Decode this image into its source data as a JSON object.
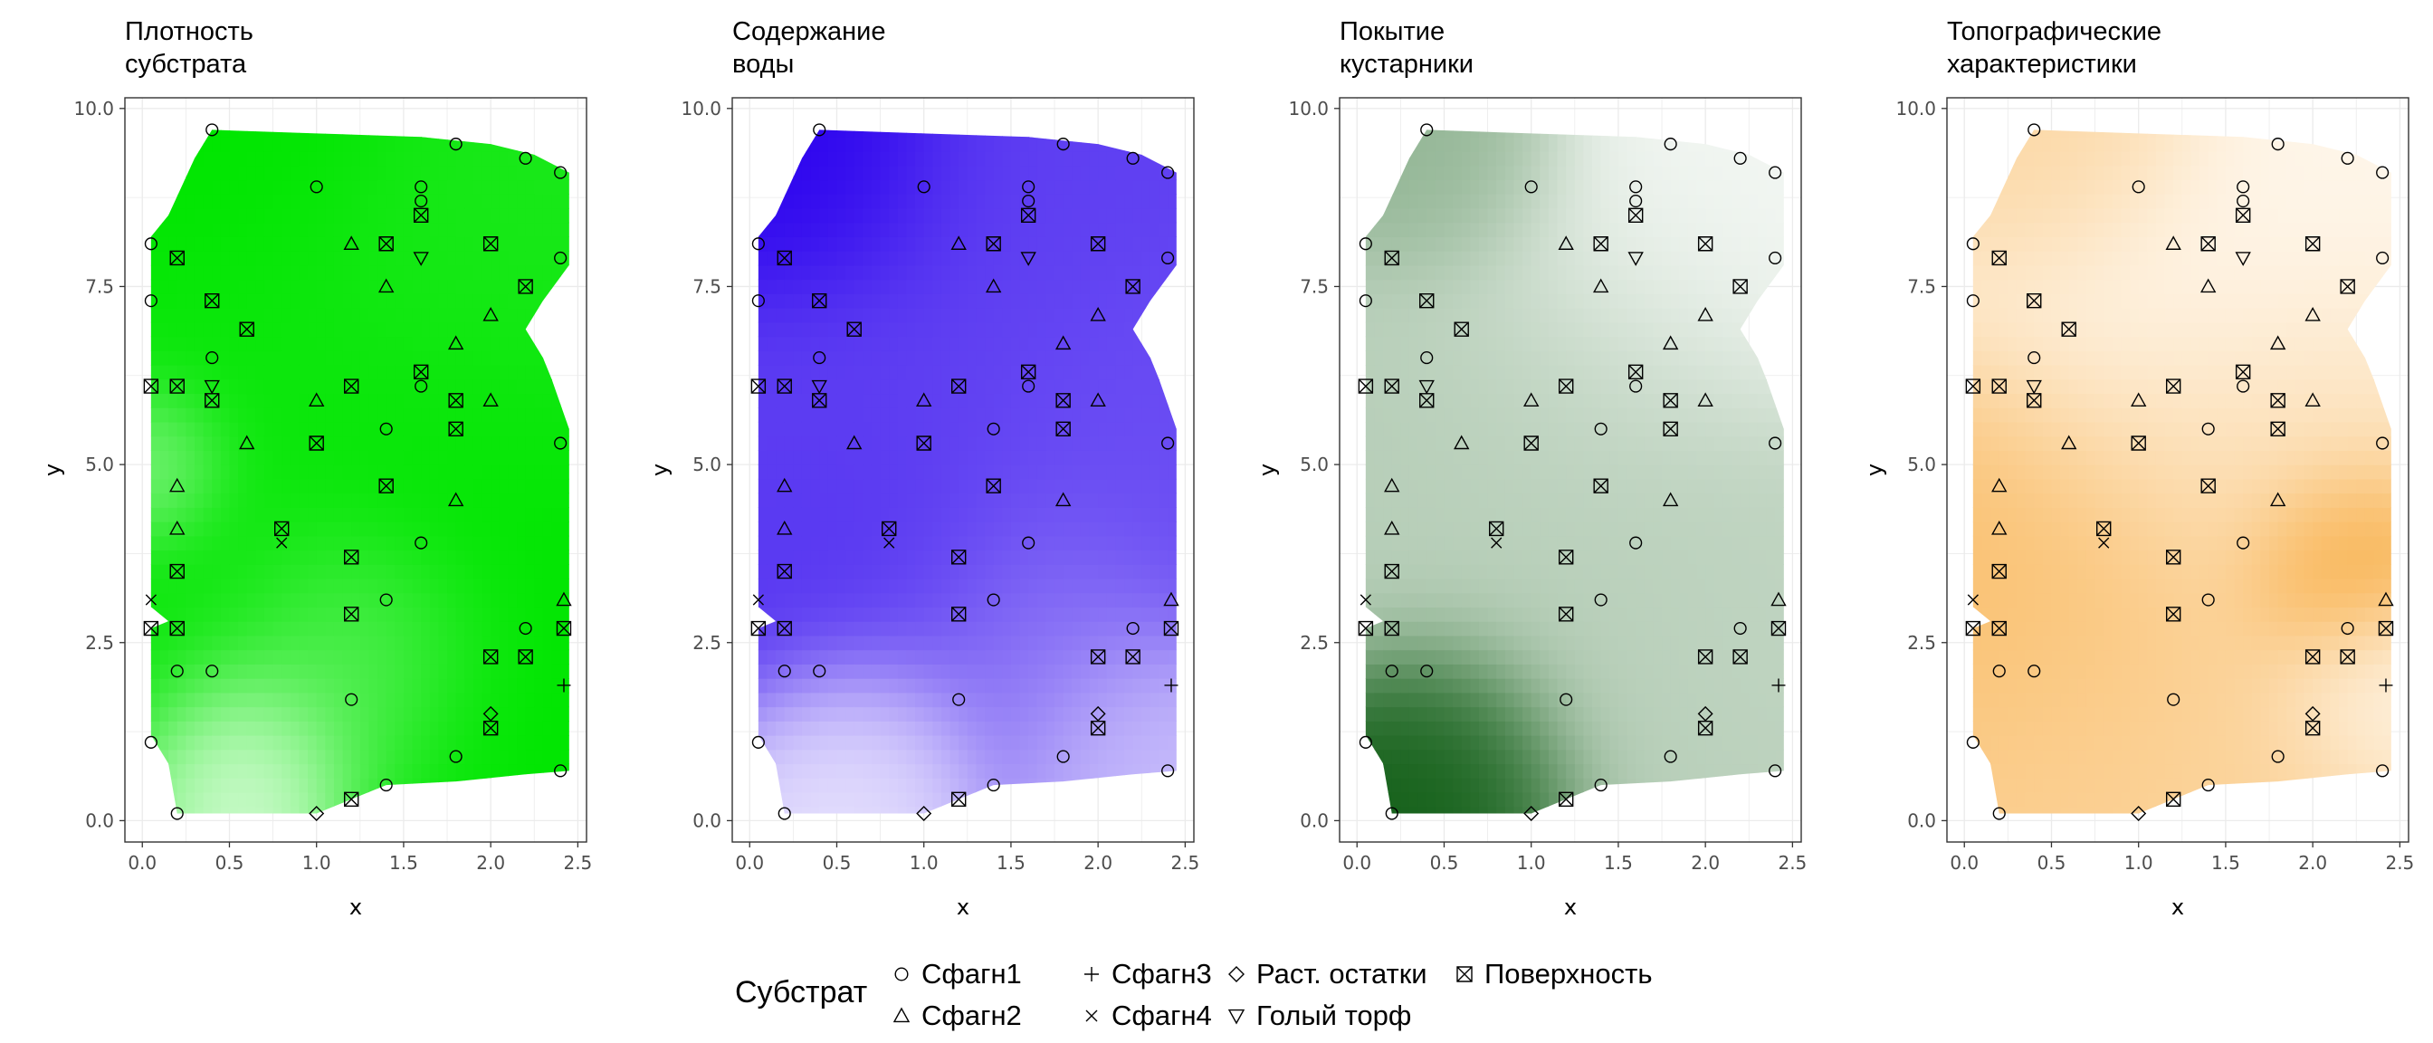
{
  "panels": [
    {
      "title": "Плотность\nсубстрата",
      "color": "#00e600"
    },
    {
      "title": "Содержание\nводы",
      "color": "#2a00ee"
    },
    {
      "title": "Покытие\nкустарники",
      "color": "#0b5a10"
    },
    {
      "title": "Топографические\nхарактеристики",
      "color": "#f7a22a"
    }
  ],
  "legend": {
    "title": "Субстрат",
    "items": [
      {
        "label": "Сфагн1",
        "shape": "circle"
      },
      {
        "label": "Сфагн2",
        "shape": "triangle"
      },
      {
        "label": "Сфагн3",
        "shape": "plus"
      },
      {
        "label": "Сфагн4",
        "shape": "cross"
      },
      {
        "label": "Раст. остатки",
        "shape": "diamond"
      },
      {
        "label": "Голый торф",
        "shape": "triangle-down"
      },
      {
        "label": "Поверхность",
        "shape": "square-x"
      }
    ]
  },
  "chart_data": {
    "type": "heatmap",
    "xlabel": "x",
    "ylabel": "y",
    "xlim": [
      -0.1,
      2.55
    ],
    "ylim": [
      -0.3,
      10.15
    ],
    "x_ticks": [
      "0.0",
      "0.5",
      "1.0",
      "1.5",
      "2.0",
      "2.5"
    ],
    "y_ticks": [
      "0.0",
      "2.5",
      "5.0",
      "7.5",
      "10.0"
    ],
    "grid": true,
    "legend_position": "bottom",
    "shapes": {
      "Сфагн1": "circle",
      "Сфагн2": "triangle",
      "Сфагн3": "plus",
      "Сфагн4": "cross",
      "Раст. остатки": "diamond",
      "Голый торф": "triangle-down",
      "Поверхность": "square-x"
    },
    "points": [
      {
        "x": 0.4,
        "y": 9.7,
        "s": "Сфагн1"
      },
      {
        "x": 1.0,
        "y": 8.9,
        "s": "Сфагн1"
      },
      {
        "x": 1.6,
        "y": 8.9,
        "s": "Сфагн1"
      },
      {
        "x": 1.6,
        "y": 8.7,
        "s": "Сфагн1"
      },
      {
        "x": 1.8,
        "y": 9.5,
        "s": "Сфагн1"
      },
      {
        "x": 2.2,
        "y": 9.3,
        "s": "Сфагн1"
      },
      {
        "x": 2.4,
        "y": 9.1,
        "s": "Сфагн1"
      },
      {
        "x": 0.05,
        "y": 8.1,
        "s": "Сфагн1"
      },
      {
        "x": 0.05,
        "y": 7.3,
        "s": "Сфагн1"
      },
      {
        "x": 2.4,
        "y": 7.9,
        "s": "Сфагн1"
      },
      {
        "x": 0.4,
        "y": 6.5,
        "s": "Сфагн1"
      },
      {
        "x": 1.6,
        "y": 6.1,
        "s": "Сфагн1"
      },
      {
        "x": 1.4,
        "y": 5.5,
        "s": "Сфагн1"
      },
      {
        "x": 2.4,
        "y": 5.3,
        "s": "Сфагн1"
      },
      {
        "x": 1.6,
        "y": 3.9,
        "s": "Сфагн1"
      },
      {
        "x": 1.4,
        "y": 3.1,
        "s": "Сфагн1"
      },
      {
        "x": 2.2,
        "y": 2.7,
        "s": "Сфагн1"
      },
      {
        "x": 0.2,
        "y": 2.1,
        "s": "Сфагн1"
      },
      {
        "x": 0.4,
        "y": 2.1,
        "s": "Сфагн1"
      },
      {
        "x": 1.2,
        "y": 1.7,
        "s": "Сфагн1"
      },
      {
        "x": 0.05,
        "y": 1.1,
        "s": "Сфагн1"
      },
      {
        "x": 1.8,
        "y": 0.9,
        "s": "Сфагн1"
      },
      {
        "x": 2.4,
        "y": 0.7,
        "s": "Сфагн1"
      },
      {
        "x": 1.4,
        "y": 0.5,
        "s": "Сфагн1"
      },
      {
        "x": 0.2,
        "y": 0.1,
        "s": "Сфагн1"
      },
      {
        "x": 1.2,
        "y": 8.1,
        "s": "Сфагн2"
      },
      {
        "x": 1.4,
        "y": 7.5,
        "s": "Сфагн2"
      },
      {
        "x": 2.0,
        "y": 7.1,
        "s": "Сфагн2"
      },
      {
        "x": 1.8,
        "y": 6.7,
        "s": "Сфагн2"
      },
      {
        "x": 1.0,
        "y": 5.9,
        "s": "Сфагн2"
      },
      {
        "x": 2.0,
        "y": 5.9,
        "s": "Сфагн2"
      },
      {
        "x": 0.6,
        "y": 5.3,
        "s": "Сфагн2"
      },
      {
        "x": 0.2,
        "y": 4.7,
        "s": "Сфагн2"
      },
      {
        "x": 1.8,
        "y": 4.5,
        "s": "Сфагн2"
      },
      {
        "x": 0.2,
        "y": 4.1,
        "s": "Сфагн2"
      },
      {
        "x": 2.42,
        "y": 3.1,
        "s": "Сфагн2"
      },
      {
        "x": 2.42,
        "y": 1.9,
        "s": "Сфагн3"
      },
      {
        "x": 0.05,
        "y": 3.1,
        "s": "Сфагн4"
      },
      {
        "x": 0.8,
        "y": 3.9,
        "s": "Сфагн4"
      },
      {
        "x": 1.0,
        "y": 0.1,
        "s": "Раст. остатки"
      },
      {
        "x": 2.0,
        "y": 1.5,
        "s": "Раст. остатки"
      },
      {
        "x": 1.6,
        "y": 7.9,
        "s": "Голый торф"
      },
      {
        "x": 0.4,
        "y": 6.1,
        "s": "Голый торф"
      },
      {
        "x": 0.2,
        "y": 7.9,
        "s": "Поверхность"
      },
      {
        "x": 1.4,
        "y": 8.1,
        "s": "Поверхность"
      },
      {
        "x": 2.0,
        "y": 8.1,
        "s": "Поверхность"
      },
      {
        "x": 1.6,
        "y": 8.5,
        "s": "Поверхность"
      },
      {
        "x": 0.4,
        "y": 7.3,
        "s": "Поверхность"
      },
      {
        "x": 2.2,
        "y": 7.5,
        "s": "Поверхность"
      },
      {
        "x": 0.6,
        "y": 6.9,
        "s": "Поверхность"
      },
      {
        "x": 1.6,
        "y": 6.3,
        "s": "Поверхность"
      },
      {
        "x": 0.05,
        "y": 6.1,
        "s": "Поверхность"
      },
      {
        "x": 0.2,
        "y": 6.1,
        "s": "Поверхность"
      },
      {
        "x": 1.2,
        "y": 6.1,
        "s": "Поверхность"
      },
      {
        "x": 0.4,
        "y": 5.9,
        "s": "Поверхность"
      },
      {
        "x": 1.8,
        "y": 5.9,
        "s": "Поверхность"
      },
      {
        "x": 1.8,
        "y": 5.5,
        "s": "Поверхность"
      },
      {
        "x": 1.0,
        "y": 5.3,
        "s": "Поверхность"
      },
      {
        "x": 1.4,
        "y": 4.7,
        "s": "Поверхность"
      },
      {
        "x": 0.8,
        "y": 4.1,
        "s": "Поверхность"
      },
      {
        "x": 1.2,
        "y": 3.7,
        "s": "Поверхность"
      },
      {
        "x": 0.2,
        "y": 3.5,
        "s": "Поверхность"
      },
      {
        "x": 1.2,
        "y": 2.9,
        "s": "Поверхность"
      },
      {
        "x": 0.05,
        "y": 2.7,
        "s": "Поверхность"
      },
      {
        "x": 0.2,
        "y": 2.7,
        "s": "Поверхность"
      },
      {
        "x": 2.42,
        "y": 2.7,
        "s": "Поверхность"
      },
      {
        "x": 2.0,
        "y": 2.3,
        "s": "Поверхность"
      },
      {
        "x": 2.2,
        "y": 2.3,
        "s": "Поверхность"
      },
      {
        "x": 2.0,
        "y": 1.3,
        "s": "Поверхность"
      },
      {
        "x": 1.2,
        "y": 0.3,
        "s": "Поверхность"
      }
    ],
    "intensity_peaks": [
      [
        {
          "x": 0.3,
          "y": 9.5,
          "v": 1.0,
          "r": 0.9
        },
        {
          "x": 0.3,
          "y": 6.0,
          "v": 0.95,
          "r": 0.8
        },
        {
          "x": 1.9,
          "y": 7.3,
          "v": 0.9,
          "r": 0.9
        },
        {
          "x": 1.8,
          "y": 4.8,
          "v": 1.0,
          "r": 0.9
        },
        {
          "x": 0.4,
          "y": 2.8,
          "v": 0.95,
          "r": 0.8
        },
        {
          "x": 2.0,
          "y": 1.3,
          "v": 1.0,
          "r": 0.7
        },
        {
          "x": 0.6,
          "y": 0.9,
          "v": 0.0,
          "r": 0.45
        },
        {
          "x": 0.05,
          "y": 5.0,
          "v": 0.25,
          "r": 0.35
        },
        {
          "x": 1.2,
          "y": 2.2,
          "v": 0.55,
          "r": 0.6
        }
      ],
      [
        {
          "x": 0.4,
          "y": 9.5,
          "v": 1.0,
          "r": 0.7
        },
        {
          "x": 1.6,
          "y": 9.1,
          "v": 0.75,
          "r": 0.8
        },
        {
          "x": 0.9,
          "y": 5.3,
          "v": 0.75,
          "r": 1.0
        },
        {
          "x": 2.2,
          "y": 5.2,
          "v": 0.7,
          "r": 0.8
        },
        {
          "x": 0.7,
          "y": 3.8,
          "v": 0.8,
          "r": 0.7
        },
        {
          "x": 0.7,
          "y": 1.0,
          "v": 0.1,
          "r": 0.5
        },
        {
          "x": 2.2,
          "y": 1.0,
          "v": 0.25,
          "r": 0.5
        },
        {
          "x": 1.6,
          "y": 2.5,
          "v": 0.5,
          "r": 0.7
        }
      ],
      [
        {
          "x": 0.5,
          "y": 0.8,
          "v": 1.0,
          "r": 0.55
        },
        {
          "x": 0.5,
          "y": 9.3,
          "v": 0.45,
          "r": 0.55
        },
        {
          "x": 1.9,
          "y": 8.1,
          "v": 0.05,
          "r": 0.9
        },
        {
          "x": 1.2,
          "y": 5.8,
          "v": 0.25,
          "r": 0.9
        },
        {
          "x": 1.5,
          "y": 3.2,
          "v": 0.3,
          "r": 1.0
        },
        {
          "x": 0.3,
          "y": 5.0,
          "v": 0.3,
          "r": 0.8
        },
        {
          "x": 2.2,
          "y": 3.0,
          "v": 0.25,
          "r": 0.7
        }
      ],
      [
        {
          "x": 2.1,
          "y": 3.5,
          "v": 1.0,
          "r": 0.45
        },
        {
          "x": 0.4,
          "y": 3.6,
          "v": 0.7,
          "r": 0.9
        },
        {
          "x": 0.5,
          "y": 9.4,
          "v": 0.45,
          "r": 0.6
        },
        {
          "x": 0.8,
          "y": 1.2,
          "v": 0.5,
          "r": 0.9
        },
        {
          "x": 1.8,
          "y": 1.0,
          "v": 0.45,
          "r": 0.7
        },
        {
          "x": 1.2,
          "y": 7.0,
          "v": 0.1,
          "r": 1.0
        },
        {
          "x": 2.3,
          "y": 1.8,
          "v": 0.05,
          "r": 0.45
        },
        {
          "x": 1.6,
          "y": 4.7,
          "v": 0.4,
          "r": 0.8
        }
      ]
    ],
    "field_outline": [
      [
        0.4,
        9.7
      ],
      [
        1.0,
        9.65
      ],
      [
        1.6,
        9.6
      ],
      [
        2.0,
        9.5
      ],
      [
        2.25,
        9.35
      ],
      [
        2.45,
        9.1
      ],
      [
        2.45,
        7.8
      ],
      [
        2.3,
        7.3
      ],
      [
        2.2,
        6.9
      ],
      [
        2.3,
        6.5
      ],
      [
        2.35,
        6.2
      ],
      [
        2.45,
        5.5
      ],
      [
        2.45,
        0.7
      ],
      [
        2.2,
        0.65
      ],
      [
        1.8,
        0.55
      ],
      [
        1.4,
        0.5
      ],
      [
        1.2,
        0.3
      ],
      [
        1.0,
        0.1
      ],
      [
        0.2,
        0.1
      ],
      [
        0.15,
        0.8
      ],
      [
        0.05,
        1.2
      ],
      [
        0.05,
        2.7
      ],
      [
        0.15,
        2.8
      ],
      [
        0.05,
        3.0
      ],
      [
        0.05,
        8.2
      ],
      [
        0.15,
        8.5
      ],
      [
        0.3,
        9.3
      ]
    ]
  }
}
